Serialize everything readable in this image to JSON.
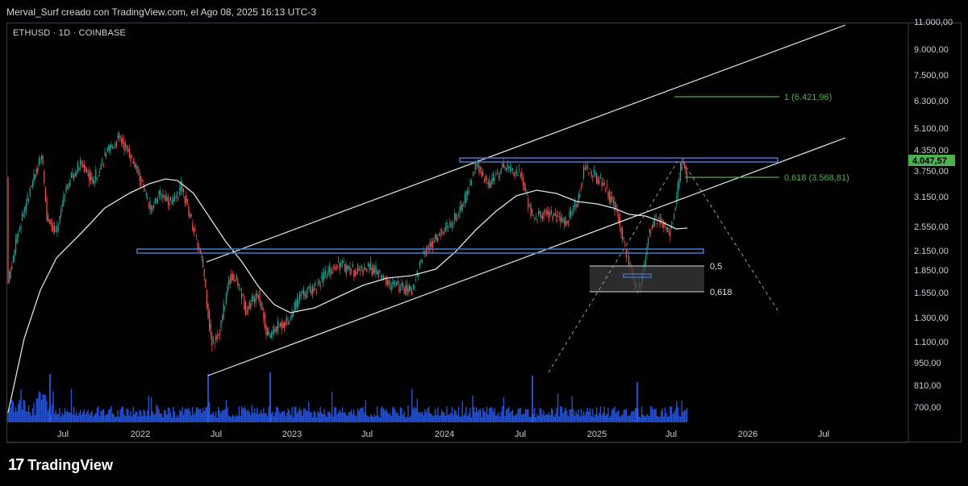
{
  "header": {
    "text": "Merval_Surf creado con TradingView.com, el Ago 08, 2025 16:13 UTC-3"
  },
  "symbol": "ETHUSD · 1D · COINBASE",
  "footer": {
    "logo_mark": "17",
    "brand": "TradingView"
  },
  "chart_data": {
    "type": "candlestick",
    "symbol": "ETHUSD",
    "interval": "1D",
    "exchange": "COINBASE",
    "price_scale": "log",
    "y_ticks": [
      "11.000,00",
      "9.000,00",
      "7.500,00",
      "6.300,00",
      "5.100,00",
      "4.350,00",
      "3.750,00",
      "3.150,00",
      "2.550,00",
      "2.150,00",
      "1.850,00",
      "1.550,00",
      "1.300,00",
      "1.100,00",
      "950,00",
      "810,00",
      "700,00"
    ],
    "x_ticks": [
      "Jul",
      "2022",
      "Jul",
      "2023",
      "Jul",
      "2024",
      "Jul",
      "2025",
      "Jul",
      "2026",
      "Jul"
    ],
    "last_price": "4.047,57",
    "annotations": {
      "fib_target": "1 (6.421,96)",
      "fib_0618_upper": "0,618 (3.568,81)",
      "fib_05_lower": "0,5",
      "fib_0618_lower": "0,618"
    },
    "horizontal_levels": [
      4100,
      2120
    ],
    "colors": {
      "up": "#26a69a",
      "down": "#ef5350",
      "volume": "#2962ff",
      "level": "#4a78d0",
      "fib": "#4caf50",
      "ma": "#e0e0e0",
      "price_tag": "#4caf50"
    }
  }
}
